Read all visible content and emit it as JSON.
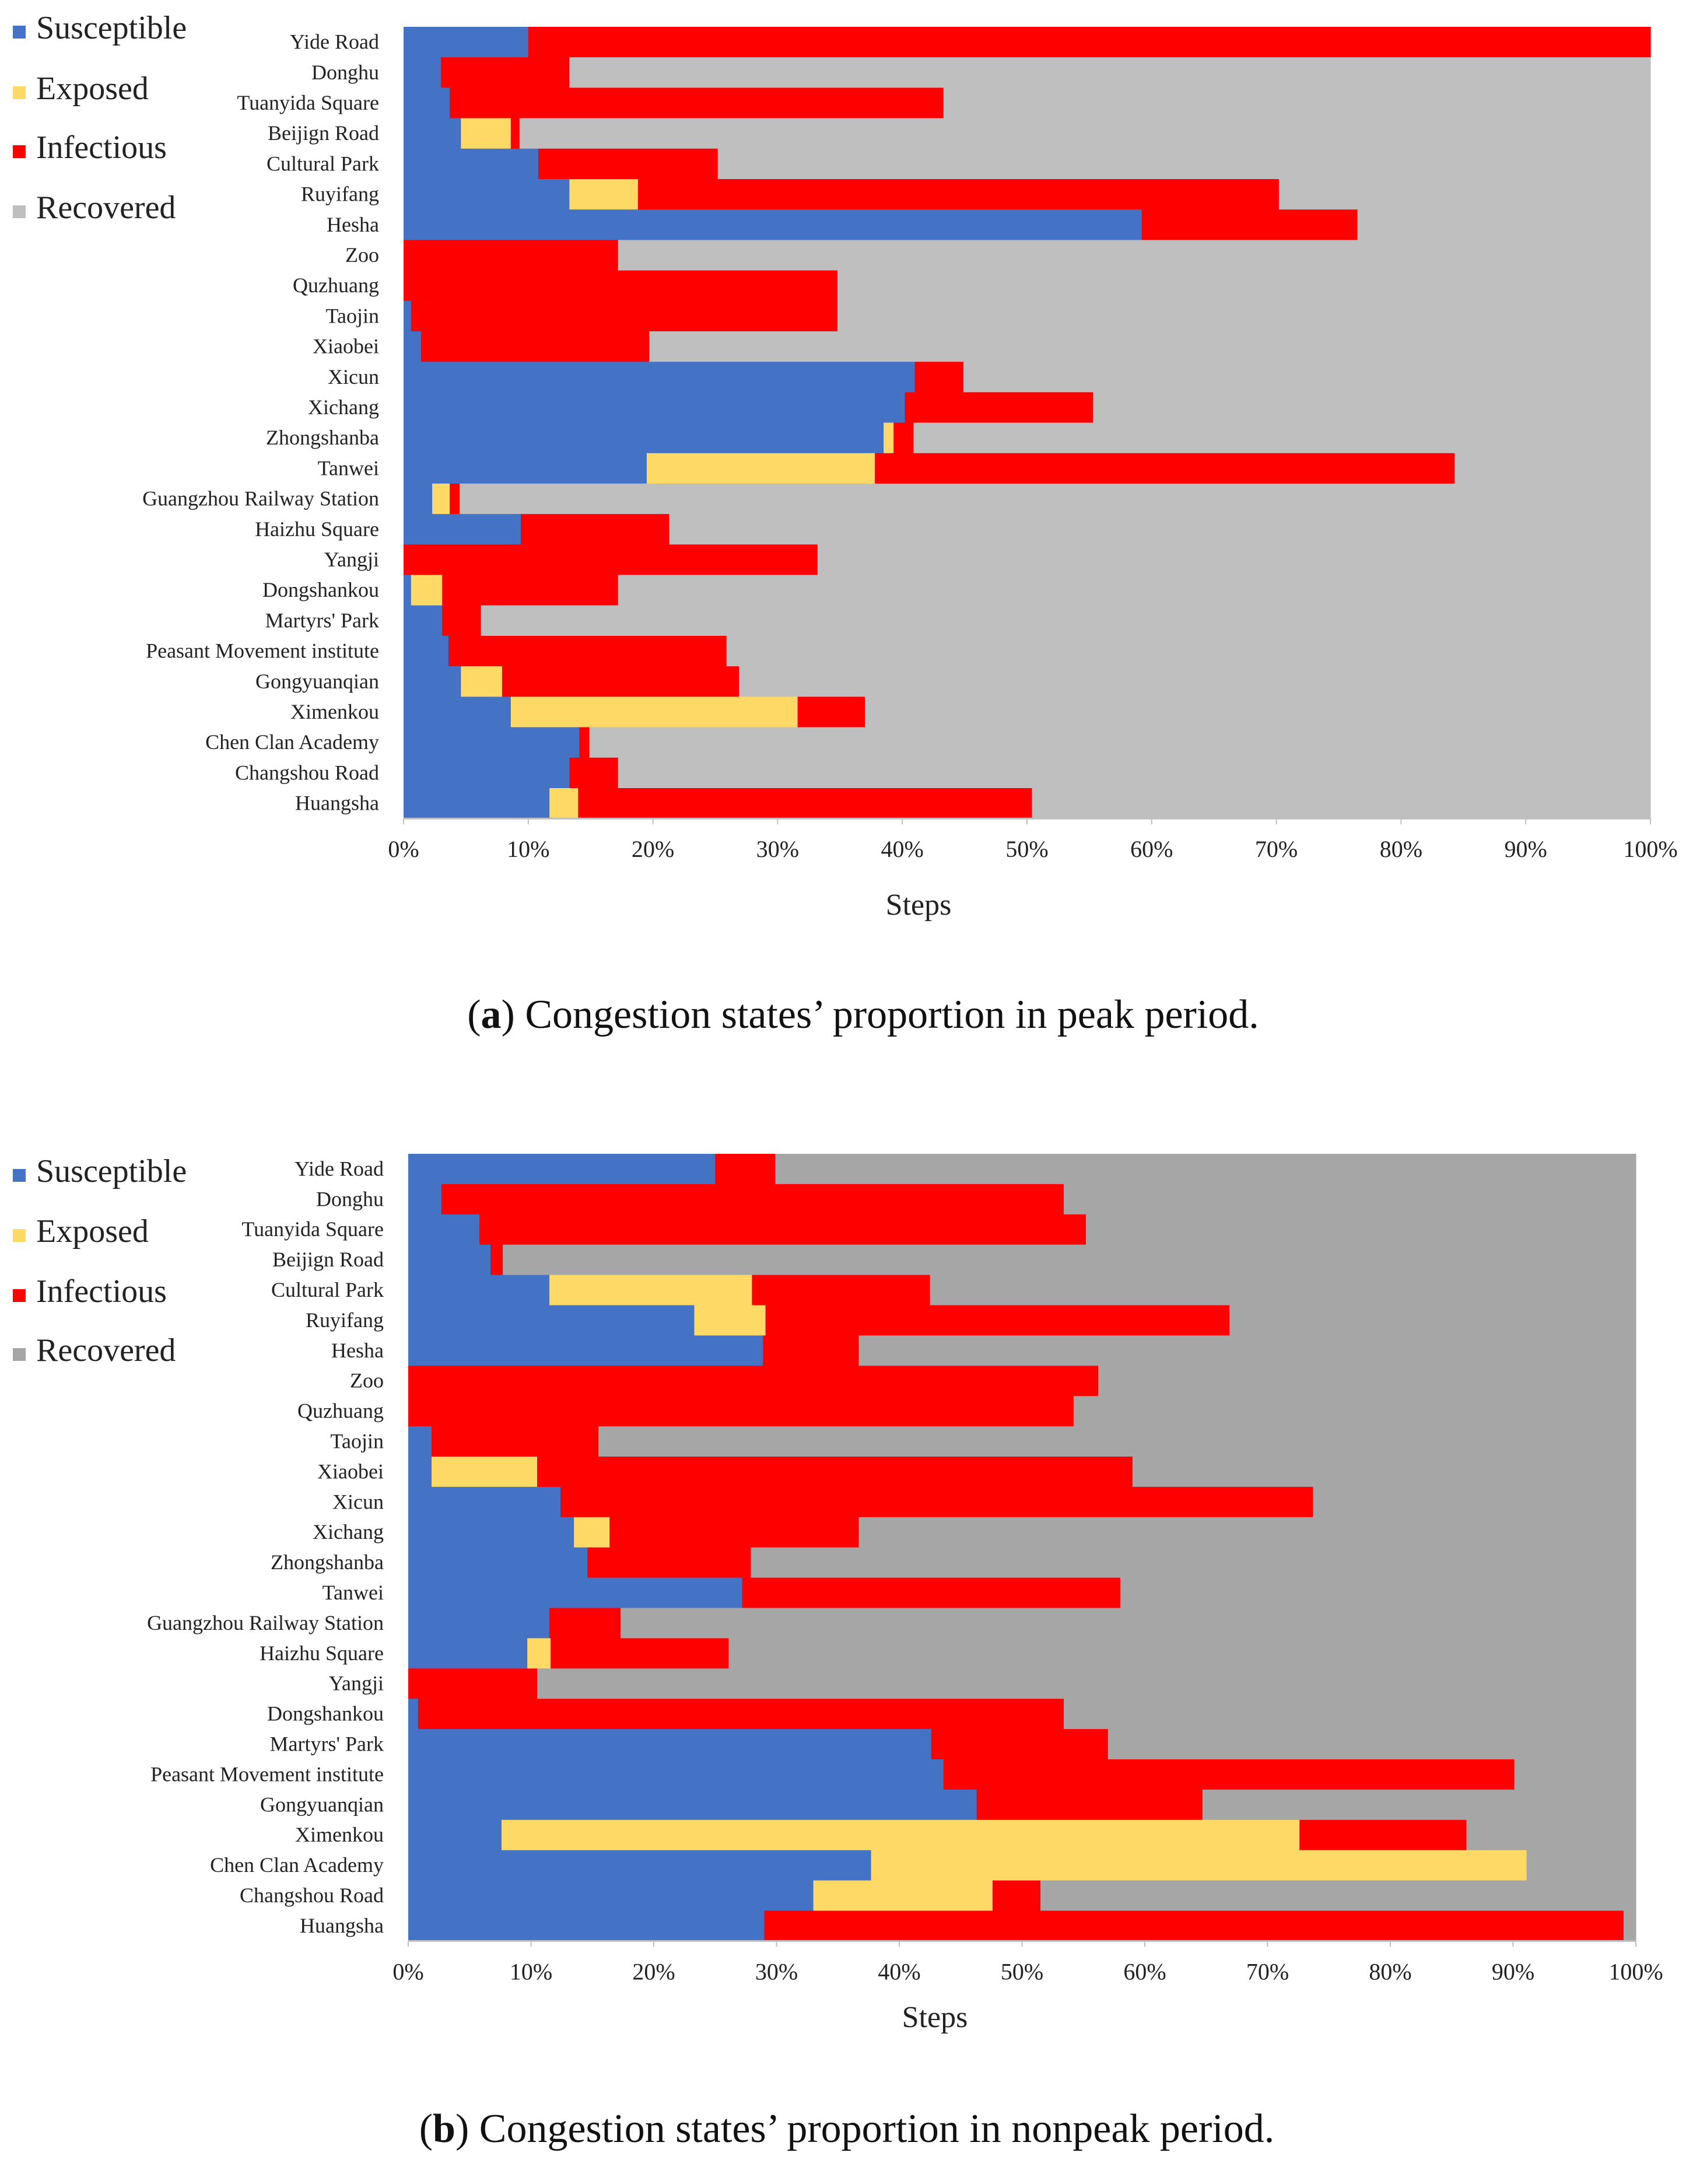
{
  "colors": {
    "susceptible": "#4472C4",
    "exposed": "#FFD966",
    "infectious": "#FF0000",
    "recovered_a": "#BFBFBF",
    "recovered_b": "#A6A6A6"
  },
  "legend": [
    "Susceptible",
    "Exposed",
    "Infectious",
    "Recovered"
  ],
  "captions": [
    {
      "label": "a",
      "open": "(",
      "close": ")",
      "text": " Congestion states’ proportion in peak period."
    },
    {
      "label": "b",
      "open": "(",
      "close": ")",
      "text": " Congestion states’ proportion in nonpeak period."
    }
  ],
  "chart_data": [
    {
      "type": "bar",
      "orientation": "horizontal",
      "stacked": "percent",
      "xlabel": "Steps",
      "xlim": [
        0,
        100
      ],
      "xticks": [
        "0%",
        "10%",
        "20%",
        "30%",
        "40%",
        "50%",
        "60%",
        "70%",
        "80%",
        "90%",
        "100%"
      ],
      "categories": [
        "Yide Road",
        "Donghu",
        "Tuanyida Square",
        "Beijign Road",
        "Cultural Park",
        "Ruyifang",
        "Hesha",
        "Zoo",
        "Quzhuang",
        "Taojin",
        "Xiaobei",
        "Xicun",
        "Xichang",
        "Zhongshanba",
        "Tanwei",
        "Guangzhou Railway Station",
        "Haizhu Square",
        "Yangji",
        "Dongshankou",
        "Martyrs' Park",
        "Peasant Movement institute",
        "Gongyuanqian",
        "Ximenkou",
        "Chen Clan Academy",
        "Changshou Road",
        "Huangsha"
      ],
      "series": [
        {
          "name": "Susceptible",
          "values": [
            10,
            3,
            3.7,
            4.6,
            10.8,
            13.3,
            59.2,
            0,
            0,
            0.6,
            1.4,
            41,
            40.2,
            38.5,
            19.5,
            2.3,
            9.4,
            0,
            0.6,
            3.1,
            3.6,
            4.6,
            8.6,
            14.1,
            13.3,
            11.7
          ]
        },
        {
          "name": "Exposed",
          "values": [
            0,
            0,
            0,
            4,
            0,
            5.5,
            0,
            0,
            0,
            0,
            0,
            0,
            0,
            0.8,
            18.3,
            1.4,
            0,
            0,
            2.5,
            0,
            0,
            3.3,
            23,
            0,
            0,
            2.3
          ]
        },
        {
          "name": "Infectious",
          "values": [
            90,
            10.3,
            39.6,
            0.7,
            14.4,
            51.4,
            17.3,
            17.2,
            34.8,
            34.2,
            18.3,
            3.9,
            15.1,
            1.6,
            46.5,
            0.8,
            11.9,
            33.2,
            14.1,
            3.1,
            22.3,
            19,
            5.4,
            0.8,
            3.9,
            36.4
          ]
        },
        {
          "name": "Recovered",
          "values": [
            0,
            86.7,
            56.7,
            90.7,
            74.8,
            29.8,
            23.5,
            82.8,
            65.2,
            65.2,
            80.3,
            55.1,
            44.7,
            59.1,
            15.7,
            95.5,
            78.7,
            66.8,
            82.8,
            93.8,
            74.1,
            73.1,
            63,
            85.1,
            82.8,
            49.6
          ]
        }
      ]
    },
    {
      "type": "bar",
      "orientation": "horizontal",
      "stacked": "percent",
      "xlabel": "Steps",
      "xlim": [
        0,
        100
      ],
      "xticks": [
        "0%",
        "10%",
        "20%",
        "30%",
        "40%",
        "50%",
        "60%",
        "70%",
        "80%",
        "90%",
        "100%"
      ],
      "categories": [
        "Yide Road",
        "Donghu",
        "Tuanyida Square",
        "Beijign Road",
        "Cultural Park",
        "Ruyifang",
        "Hesha",
        "Zoo",
        "Quzhuang",
        "Taojin",
        "Xiaobei",
        "Xicun",
        "Xichang",
        "Zhongshanba",
        "Tanwei",
        "Guangzhou Railway Station",
        "Haizhu Square",
        "Yangji",
        "Dongshankou",
        "Martyrs' Park",
        "Peasant Movement institute",
        "Gongyuanqian",
        "Ximenkou",
        "Chen Clan Academy",
        "Changshou Road",
        "Huangsha"
      ],
      "series": [
        {
          "name": "Susceptible",
          "values": [
            25,
            2.7,
            5.8,
            6.7,
            11.5,
            23.3,
            28.9,
            0,
            0,
            1.9,
            1.9,
            12.4,
            13.5,
            14.6,
            27.2,
            11.5,
            9.7,
            0,
            0.8,
            42.6,
            43.6,
            46.3,
            7.6,
            37.7,
            33,
            29
          ]
        },
        {
          "name": "Exposed",
          "values": [
            0,
            0,
            0,
            0,
            16.5,
            5.8,
            0,
            0,
            0,
            0,
            8.6,
            0,
            2.9,
            0,
            0,
            0,
            1.9,
            0,
            0,
            0,
            0,
            0,
            65,
            53.4,
            14.6,
            0
          ]
        },
        {
          "name": "Infectious",
          "values": [
            4.9,
            50.7,
            49.4,
            1,
            14.5,
            37.8,
            7.8,
            56.2,
            54.2,
            13.6,
            48.5,
            61.3,
            20.3,
            13.3,
            30.8,
            5.8,
            14.5,
            10.5,
            52.6,
            14.4,
            46.5,
            18.4,
            13.6,
            0,
            3.9,
            70
          ]
        },
        {
          "name": "Recovered",
          "values": [
            70.1,
            46.6,
            44.8,
            92.3,
            57.5,
            33.1,
            63.3,
            43.8,
            45.8,
            84.5,
            41,
            26.3,
            63.3,
            72.1,
            42,
            82.7,
            73.9,
            89.5,
            46.6,
            43,
            9.9,
            35.3,
            13.8,
            8.9,
            48.5,
            1
          ]
        }
      ]
    }
  ]
}
